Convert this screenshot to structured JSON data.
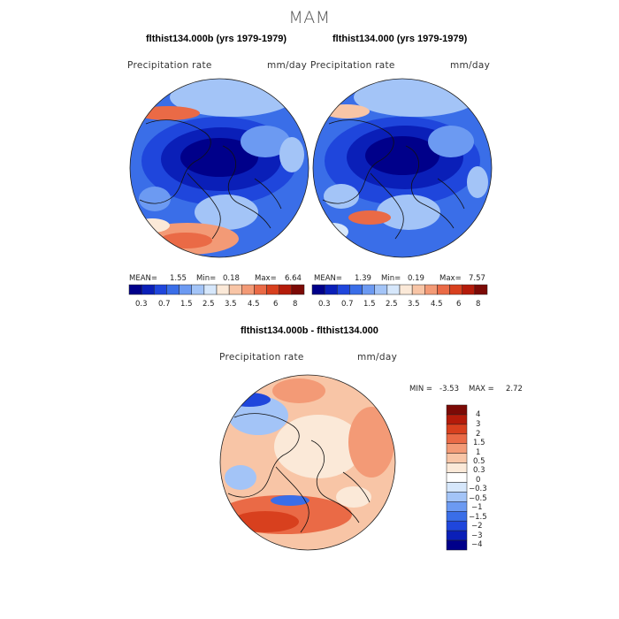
{
  "chart_data": {
    "type": "heatmap",
    "projection": "north-polar-stereographic",
    "suptitle": "MAM",
    "colors": {
      "abs": [
        "#00008a",
        "#0a1fb8",
        "#1f46dc",
        "#3a6ee8",
        "#6c9af2",
        "#a3c4f7",
        "#d6e7fb",
        "#fbe9d8",
        "#f8c5a6",
        "#f39a76",
        "#ea6a46",
        "#d8401e",
        "#b41b0a",
        "#7c0a06"
      ],
      "diff": [
        "#00008a",
        "#0a1fb8",
        "#1f46dc",
        "#3a6ee8",
        "#6c9af2",
        "#a3c4f7",
        "#d6e7fb",
        "#ffffff",
        "#fbe9d8",
        "#f8c5a6",
        "#f39a76",
        "#ea6a46",
        "#d8401e",
        "#b41b0a",
        "#7c0a06"
      ]
    },
    "panels": [
      {
        "title": "flthist134.000b (yrs 1979-1979)",
        "variable": "Precipitation rate",
        "units": "mm/day",
        "stats": {
          "mean_label": "MEAN=",
          "mean": "1.55",
          "min_label": "Min=",
          "min": "0.18",
          "max_label": "Max=",
          "max": "6.64"
        },
        "levels": [
          "0.3",
          "0.7",
          "1.5",
          "2.5",
          "3.5",
          "4.5",
          "6",
          "8"
        ]
      },
      {
        "title": "flthist134.000 (yrs 1979-1979)",
        "variable": "Precipitation rate",
        "units": "mm/day",
        "stats": {
          "mean_label": "MEAN=",
          "mean": "1.39",
          "min_label": "Min=",
          "min": "0.19",
          "max_label": "Max=",
          "max": "7.57"
        },
        "levels": [
          "0.3",
          "0.7",
          "1.5",
          "2.5",
          "3.5",
          "4.5",
          "6",
          "8"
        ]
      },
      {
        "title": "flthist134.000b - flthist134.000",
        "variable": "Precipitation rate",
        "units": "mm/day",
        "stats": {
          "min_label": "MIN =",
          "min": "-3.53",
          "max_label": "MAX =",
          "max": "2.72"
        },
        "levels": [
          "4",
          "3",
          "2",
          "1.5",
          "1",
          "0.5",
          "0.3",
          "0",
          "−0.3",
          "−0.5",
          "−1",
          "−1.5",
          "−2",
          "−3",
          "−4"
        ]
      }
    ]
  }
}
